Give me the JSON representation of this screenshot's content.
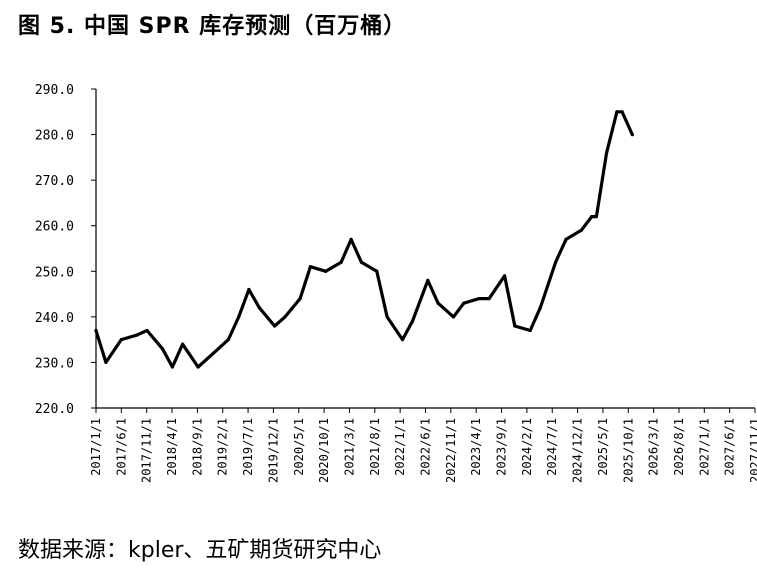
{
  "figure": {
    "title": "图 5.  中国 SPR 库存预测（百万桶）",
    "source": "数据来源：kpler、五矿期货研究中心"
  },
  "chart_data": {
    "type": "line",
    "title": "",
    "xlabel": "",
    "ylabel": "",
    "unit": "百万桶",
    "ylim": [
      220,
      290
    ],
    "yticks": [
      "220.0",
      "230.0",
      "240.0",
      "250.0",
      "260.0",
      "270.0",
      "280.0",
      "290.0"
    ],
    "xticks": [
      "2017/1/1",
      "2017/6/1",
      "2017/11/1",
      "2018/4/1",
      "2018/9/1",
      "2019/2/1",
      "2019/7/1",
      "2019/12/1",
      "2020/5/1",
      "2020/10/1",
      "2021/3/1",
      "2021/8/1",
      "2022/1/1",
      "2022/6/1",
      "2022/11/1",
      "2023/4/1",
      "2023/9/1",
      "2024/2/1",
      "2024/7/1",
      "2024/12/1",
      "2025/5/1",
      "2025/10/1",
      "2026/3/1",
      "2026/8/1",
      "2027/1/1",
      "2027/6/1",
      "2027/11/1"
    ],
    "grid": false,
    "legend": "none",
    "color": "#000000",
    "series": [
      {
        "x": [
          "2017/1/1",
          "2017/3/1",
          "2017/6/1",
          "2017/9/1",
          "2017/11/1",
          "2018/2/1",
          "2018/4/1",
          "2018/6/1",
          "2018/9/1",
          "2018/12/1",
          "2019/3/1",
          "2019/5/1",
          "2019/7/1",
          "2019/9/1",
          "2019/12/1",
          "2020/2/1",
          "2020/5/1",
          "2020/7/1",
          "2020/10/1",
          "2021/1/1",
          "2021/3/1",
          "2021/5/1",
          "2021/8/1",
          "2021/10/1",
          "2022/1/1",
          "2022/3/1",
          "2022/6/1",
          "2022/8/1",
          "2022/11/1",
          "2023/1/1",
          "2023/4/1",
          "2023/6/1",
          "2023/9/1",
          "2023/11/1",
          "2024/2/1",
          "2024/4/1",
          "2024/7/1",
          "2024/9/1",
          "2024/12/1",
          "2025/2/1",
          "2025/3/1",
          "2025/5/1",
          "2025/7/1",
          "2025/8/1",
          "2025/10/1"
        ],
        "values": [
          237,
          230,
          235,
          236,
          237,
          233,
          229,
          234,
          229,
          232,
          235,
          240,
          246,
          242,
          238,
          240,
          244,
          251,
          250,
          252,
          257,
          252,
          250,
          240,
          235,
          239,
          248,
          243,
          240,
          243,
          244,
          244,
          249,
          238,
          237,
          242,
          252,
          257,
          259,
          262,
          262,
          276,
          285,
          285,
          280
        ]
      }
    ]
  }
}
